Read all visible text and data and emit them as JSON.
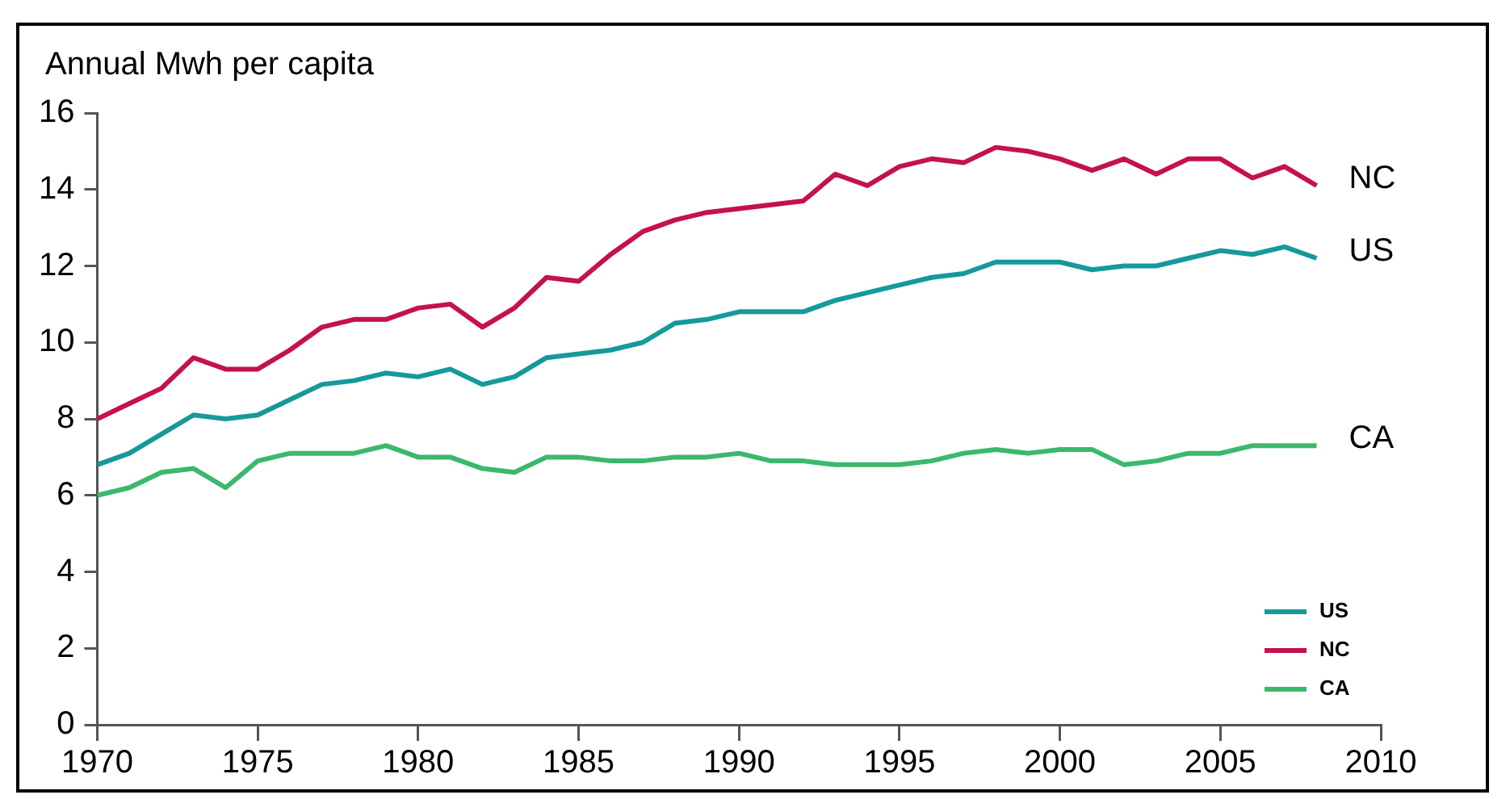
{
  "chart_data": {
    "type": "line",
    "ylabel": "Annual Mwh per capita",
    "x": [
      1970,
      1971,
      1972,
      1973,
      1974,
      1975,
      1976,
      1977,
      1978,
      1979,
      1980,
      1981,
      1982,
      1983,
      1984,
      1985,
      1986,
      1987,
      1988,
      1989,
      1990,
      1991,
      1992,
      1993,
      1994,
      1995,
      1996,
      1997,
      1998,
      1999,
      2000,
      2001,
      2002,
      2003,
      2004,
      2005,
      2006,
      2007,
      2008
    ],
    "series": [
      {
        "name": "US",
        "color": "#16999b",
        "values": [
          6.8,
          7.1,
          7.6,
          8.1,
          8.0,
          8.1,
          8.5,
          8.9,
          9.0,
          9.2,
          9.1,
          9.3,
          8.9,
          9.1,
          9.6,
          9.7,
          9.8,
          10.0,
          10.5,
          10.6,
          10.8,
          10.8,
          10.8,
          11.1,
          11.3,
          11.5,
          11.7,
          11.8,
          12.1,
          12.1,
          12.1,
          11.9,
          12.0,
          12.0,
          12.2,
          12.4,
          12.3,
          12.5,
          12.2
        ]
      },
      {
        "name": "NC",
        "color": "#c4124a",
        "values": [
          8.0,
          8.4,
          8.8,
          9.6,
          9.3,
          9.3,
          9.8,
          10.4,
          10.6,
          10.6,
          10.9,
          11.0,
          10.4,
          10.9,
          11.7,
          11.6,
          12.3,
          12.9,
          13.2,
          13.4,
          13.5,
          13.6,
          13.7,
          14.4,
          14.1,
          14.6,
          14.8,
          14.7,
          15.1,
          15.0,
          14.8,
          14.5,
          14.8,
          14.4,
          14.8,
          14.8,
          14.3,
          14.6,
          14.1
        ]
      },
      {
        "name": "CA",
        "color": "#3cb86e",
        "values": [
          6.0,
          6.2,
          6.6,
          6.7,
          6.2,
          6.9,
          7.1,
          7.1,
          7.1,
          7.3,
          7.0,
          7.0,
          6.7,
          6.6,
          7.0,
          7.0,
          6.9,
          6.9,
          7.0,
          7.0,
          7.1,
          6.9,
          6.9,
          6.8,
          6.8,
          6.8,
          6.9,
          7.1,
          7.2,
          7.1,
          7.2,
          7.2,
          6.8,
          6.9,
          7.1,
          7.1,
          7.3,
          7.3,
          7.3
        ]
      }
    ],
    "xlim": [
      1970,
      2010
    ],
    "xticks": [
      1970,
      1975,
      1980,
      1985,
      1990,
      1995,
      2000,
      2005,
      2010
    ],
    "ylim": [
      0,
      16
    ],
    "yticks": [
      0,
      2,
      4,
      6,
      8,
      10,
      12,
      14,
      16
    ],
    "grid": false,
    "legend": "bottom right",
    "marker": "none",
    "line_style": "solid"
  }
}
